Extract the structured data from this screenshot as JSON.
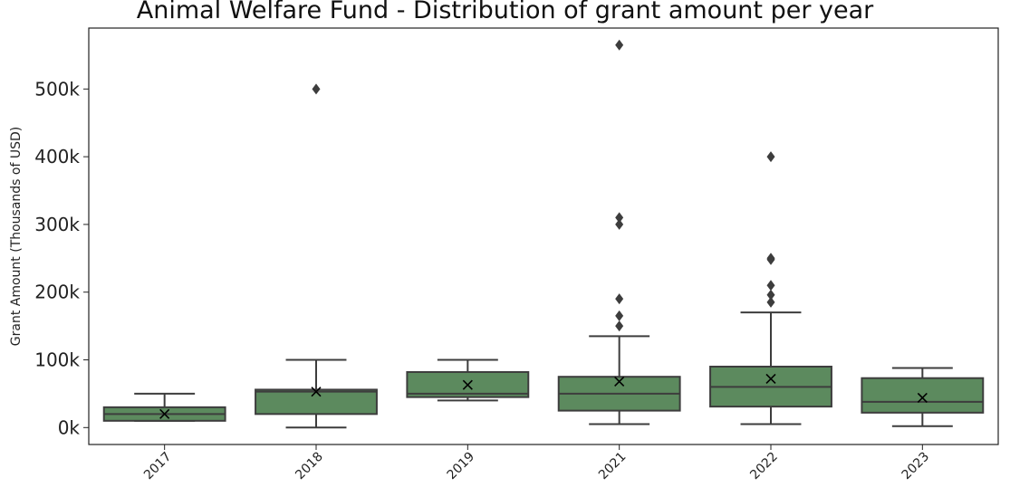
{
  "chart_data": {
    "type": "box",
    "title": "Animal Welfare Fund - Distribution of grant amount per year",
    "xlabel": "",
    "ylabel": "Grant Amount (Thousands of USD)",
    "ylim": [
      -25000,
      590000
    ],
    "yticks": [
      0,
      100000,
      200000,
      300000,
      400000,
      500000
    ],
    "ytick_labels": [
      "0k",
      "100k",
      "200k",
      "300k",
      "400k",
      "500k"
    ],
    "categories": [
      "2017",
      "2018",
      "2019",
      "2021",
      "2022",
      "2023"
    ],
    "grid": false,
    "colors": {
      "box": "#5c8a5e",
      "line": "#3d3d3d"
    },
    "boxes": [
      {
        "category": "2017",
        "whisker_low": 10000,
        "q1": 10000,
        "median": 20000,
        "q3": 30000,
        "whisker_high": 50000,
        "mean": 20000,
        "outliers": []
      },
      {
        "category": "2018",
        "whisker_low": 0,
        "q1": 20000,
        "median": 53000,
        "q3": 56000,
        "whisker_high": 100000,
        "mean": 53000,
        "outliers": [
          500000
        ]
      },
      {
        "category": "2019",
        "whisker_low": 40000,
        "q1": 45000,
        "median": 50000,
        "q3": 82000,
        "whisker_high": 100000,
        "mean": 63000,
        "outliers": []
      },
      {
        "category": "2021",
        "whisker_low": 5000,
        "q1": 25000,
        "median": 50000,
        "q3": 75000,
        "whisker_high": 135000,
        "mean": 68000,
        "outliers": [
          150000,
          165000,
          190000,
          300000,
          310000,
          565000
        ]
      },
      {
        "category": "2022",
        "whisker_low": 5000,
        "q1": 31000,
        "median": 60000,
        "q3": 90000,
        "whisker_high": 170000,
        "mean": 72000,
        "outliers": [
          185000,
          196000,
          210000,
          248000,
          250000,
          400000
        ]
      },
      {
        "category": "2023",
        "whisker_low": 2000,
        "q1": 22000,
        "median": 38000,
        "q3": 73000,
        "whisker_high": 88000,
        "mean": 44000,
        "outliers": []
      }
    ]
  }
}
